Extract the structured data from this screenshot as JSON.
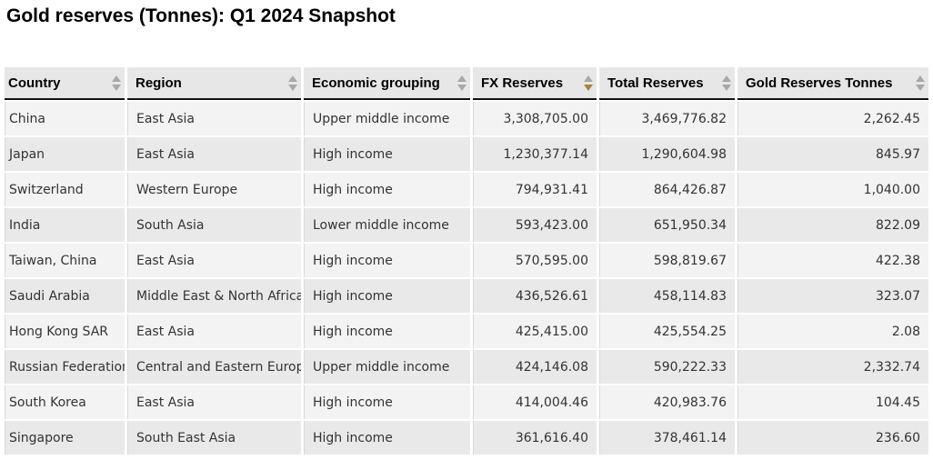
{
  "title": "Gold reserves (Tonnes): Q1 2024 Snapshot",
  "colors": {
    "header_bg": "#e7e7e7",
    "row_odd": "#f3f3f3",
    "row_even": "#e9e9e9",
    "cell_border": "#d9d9d9",
    "header_underline": "#111111",
    "sort_inactive": "#a8a8a8",
    "sort_active": "#a5843c",
    "text": "#333333",
    "title_color": "#000000"
  },
  "table": {
    "columns": [
      {
        "label": "Country",
        "align": "left",
        "sort": "none"
      },
      {
        "label": "Region",
        "align": "left",
        "sort": "none"
      },
      {
        "label": "Economic grouping",
        "align": "left",
        "sort": "none"
      },
      {
        "label": "FX Reserves",
        "align": "right",
        "sort": "desc"
      },
      {
        "label": "Total Reserves",
        "align": "right",
        "sort": "none"
      },
      {
        "label": "Gold Reserves Tonnes",
        "align": "right",
        "sort": "none"
      }
    ],
    "rows": [
      [
        "China",
        "East Asia",
        "Upper middle income",
        "3,308,705.00",
        "3,469,776.82",
        "2,262.45"
      ],
      [
        "Japan",
        "East Asia",
        "High income",
        "1,230,377.14",
        "1,290,604.98",
        "845.97"
      ],
      [
        "Switzerland",
        "Western Europe",
        "High income",
        "794,931.41",
        "864,426.87",
        "1,040.00"
      ],
      [
        "India",
        "South Asia",
        "Lower middle income",
        "593,423.00",
        "651,950.34",
        "822.09"
      ],
      [
        "Taiwan, China",
        "East Asia",
        "High income",
        "570,595.00",
        "598,819.67",
        "422.38"
      ],
      [
        "Saudi Arabia",
        "Middle East & North Africa",
        "High income",
        "436,526.61",
        "458,114.83",
        "323.07"
      ],
      [
        "Hong Kong SAR",
        "East Asia",
        "High income",
        "425,415.00",
        "425,554.25",
        "2.08"
      ],
      [
        "Russian Federation",
        "Central and Eastern Europe",
        "Upper middle income",
        "424,146.08",
        "590,222.33",
        "2,332.74"
      ],
      [
        "South Korea",
        "East Asia",
        "High income",
        "414,004.46",
        "420,983.76",
        "104.45"
      ],
      [
        "Singapore",
        "South East Asia",
        "High income",
        "361,616.40",
        "378,461.14",
        "236.60"
      ]
    ]
  }
}
